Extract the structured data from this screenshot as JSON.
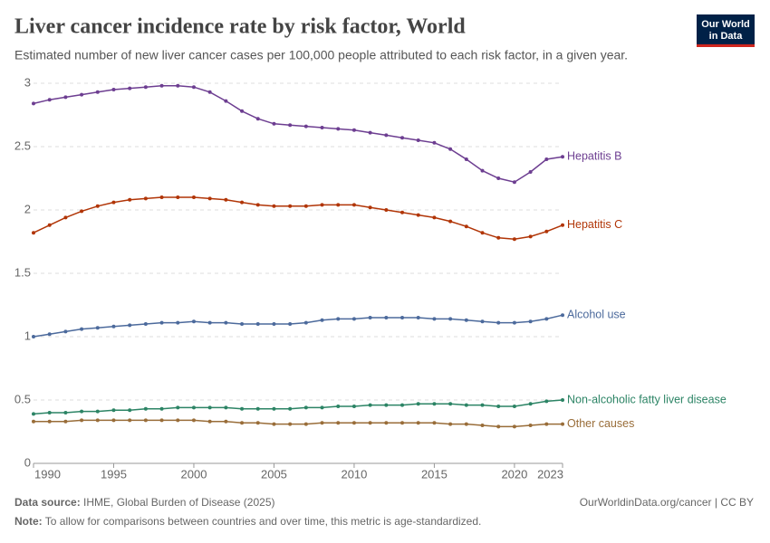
{
  "chart_data": {
    "type": "line",
    "title": "Liver cancer incidence rate by risk factor, World",
    "subtitle": "Estimated number of new liver cancer cases per 100,000 people attributed to each risk factor, in a given year.",
    "logo": [
      "Our World",
      "in Data"
    ],
    "source_label": "Data source:",
    "source": "IHME, Global Burden of Disease (2025)",
    "url": "OurWorldinData.org/cancer | CC BY",
    "note_label": "Note:",
    "note": "To allow for comparisons between countries and over time, this metric is age-standardized.",
    "x": [
      1990,
      1991,
      1992,
      1993,
      1994,
      1995,
      1996,
      1997,
      1998,
      1999,
      2000,
      2001,
      2002,
      2003,
      2004,
      2005,
      2006,
      2007,
      2008,
      2009,
      2010,
      2011,
      2012,
      2013,
      2014,
      2015,
      2016,
      2017,
      2018,
      2019,
      2020,
      2021,
      2022,
      2023
    ],
    "xlim": [
      1990,
      2023
    ],
    "xticks": [
      1990,
      1995,
      2000,
      2005,
      2010,
      2015,
      2020,
      2023
    ],
    "ylim": [
      0,
      3
    ],
    "yticks": [
      0,
      0.5,
      1,
      1.5,
      2,
      2.5,
      3
    ],
    "grid": true,
    "series": [
      {
        "name": "Hepatitis B",
        "color": "#6d3e91",
        "values": [
          2.84,
          2.87,
          2.89,
          2.91,
          2.93,
          2.95,
          2.96,
          2.97,
          2.98,
          2.98,
          2.97,
          2.93,
          2.86,
          2.78,
          2.72,
          2.68,
          2.67,
          2.66,
          2.65,
          2.64,
          2.63,
          2.61,
          2.59,
          2.57,
          2.55,
          2.53,
          2.48,
          2.4,
          2.31,
          2.25,
          2.22,
          2.3,
          2.4,
          2.42
        ]
      },
      {
        "name": "Hepatitis C",
        "color": "#b13507",
        "values": [
          1.82,
          1.88,
          1.94,
          1.99,
          2.03,
          2.06,
          2.08,
          2.09,
          2.1,
          2.1,
          2.1,
          2.09,
          2.08,
          2.06,
          2.04,
          2.03,
          2.03,
          2.03,
          2.04,
          2.04,
          2.04,
          2.02,
          2.0,
          1.98,
          1.96,
          1.94,
          1.91,
          1.87,
          1.82,
          1.78,
          1.77,
          1.79,
          1.83,
          1.88
        ]
      },
      {
        "name": "Alcohol use",
        "color": "#4c6a9c",
        "values": [
          1.0,
          1.02,
          1.04,
          1.06,
          1.07,
          1.08,
          1.09,
          1.1,
          1.11,
          1.11,
          1.12,
          1.11,
          1.11,
          1.1,
          1.1,
          1.1,
          1.1,
          1.11,
          1.13,
          1.14,
          1.14,
          1.15,
          1.15,
          1.15,
          1.15,
          1.14,
          1.14,
          1.13,
          1.12,
          1.11,
          1.11,
          1.12,
          1.14,
          1.17
        ]
      },
      {
        "name": "Non-alcoholic fatty liver disease",
        "color": "#2c8465",
        "values": [
          0.39,
          0.4,
          0.4,
          0.41,
          0.41,
          0.42,
          0.42,
          0.43,
          0.43,
          0.44,
          0.44,
          0.44,
          0.44,
          0.43,
          0.43,
          0.43,
          0.43,
          0.44,
          0.44,
          0.45,
          0.45,
          0.46,
          0.46,
          0.46,
          0.47,
          0.47,
          0.47,
          0.46,
          0.46,
          0.45,
          0.45,
          0.47,
          0.49,
          0.5
        ]
      },
      {
        "name": "Other causes",
        "color": "#996d39",
        "values": [
          0.33,
          0.33,
          0.33,
          0.34,
          0.34,
          0.34,
          0.34,
          0.34,
          0.34,
          0.34,
          0.34,
          0.33,
          0.33,
          0.32,
          0.32,
          0.31,
          0.31,
          0.31,
          0.32,
          0.32,
          0.32,
          0.32,
          0.32,
          0.32,
          0.32,
          0.32,
          0.31,
          0.31,
          0.3,
          0.29,
          0.29,
          0.3,
          0.31,
          0.31
        ]
      }
    ]
  }
}
